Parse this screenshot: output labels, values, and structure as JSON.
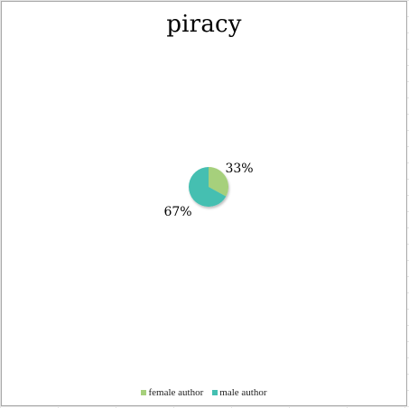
{
  "chart_data": {
    "type": "pie",
    "title": "piracy",
    "categories": [
      "female author",
      "male author"
    ],
    "values": [
      33,
      67
    ],
    "data_labels": [
      "33%",
      "67%"
    ],
    "colors": [
      "#a6d07c",
      "#44bfb1"
    ],
    "legend_position": "bottom",
    "grid": false
  }
}
